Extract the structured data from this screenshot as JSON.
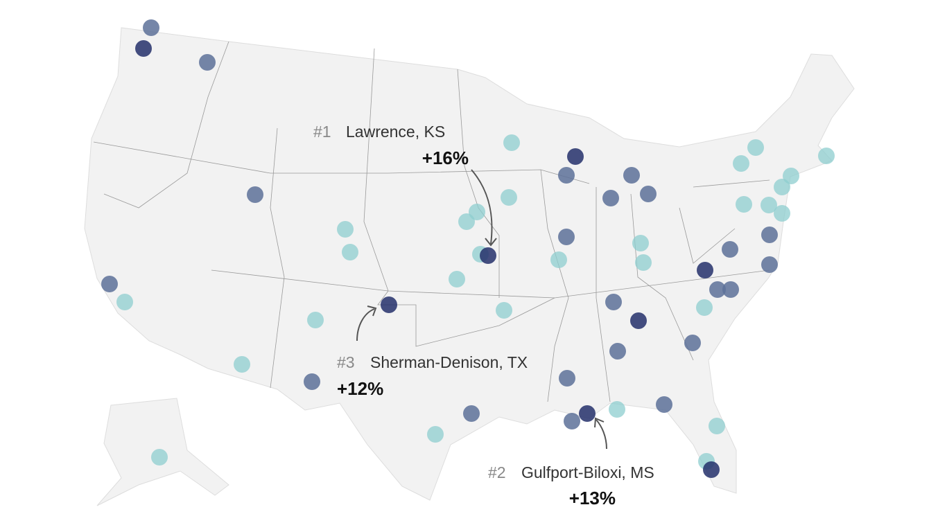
{
  "annotations": [
    {
      "rank": "#1",
      "name": "Lawrence, KS",
      "change": "+16%"
    },
    {
      "rank": "#2",
      "name": "Gulfport-Biloxi, MS",
      "change": "+13%"
    },
    {
      "rank": "#3",
      "name": "Sherman-Denison, TX",
      "change": "+12%"
    }
  ]
}
